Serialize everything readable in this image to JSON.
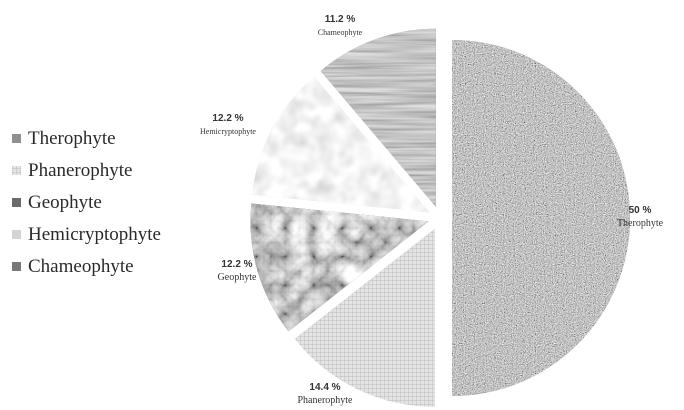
{
  "chart_data": {
    "type": "pie",
    "categories": [
      "Therophyte",
      "Phanerophyte",
      "Geophyte",
      "Hemicryptophyte",
      "Chameophyte"
    ],
    "values": [
      50,
      14.4,
      12.2,
      12.2,
      11.2
    ],
    "value_labels": [
      "50 %",
      "14.4 %",
      "12.2 %",
      "12.2 %",
      "11.2 %"
    ],
    "legend": {
      "position": "left",
      "entries": [
        "Therophyte",
        "Phanerophyte",
        "Geophyte",
        "Hemicryptophyte",
        "Chameophyte"
      ]
    },
    "slice_textures": [
      "granite",
      "crosshatch",
      "crumpled",
      "droplets",
      "woodgrain"
    ],
    "colors": [
      "#8c8c8c",
      "#d6d6d6",
      "#6a6a6a",
      "#dcdcdc",
      "#7a7a7a"
    ],
    "start_angle_deg": 0,
    "exploded": true
  }
}
